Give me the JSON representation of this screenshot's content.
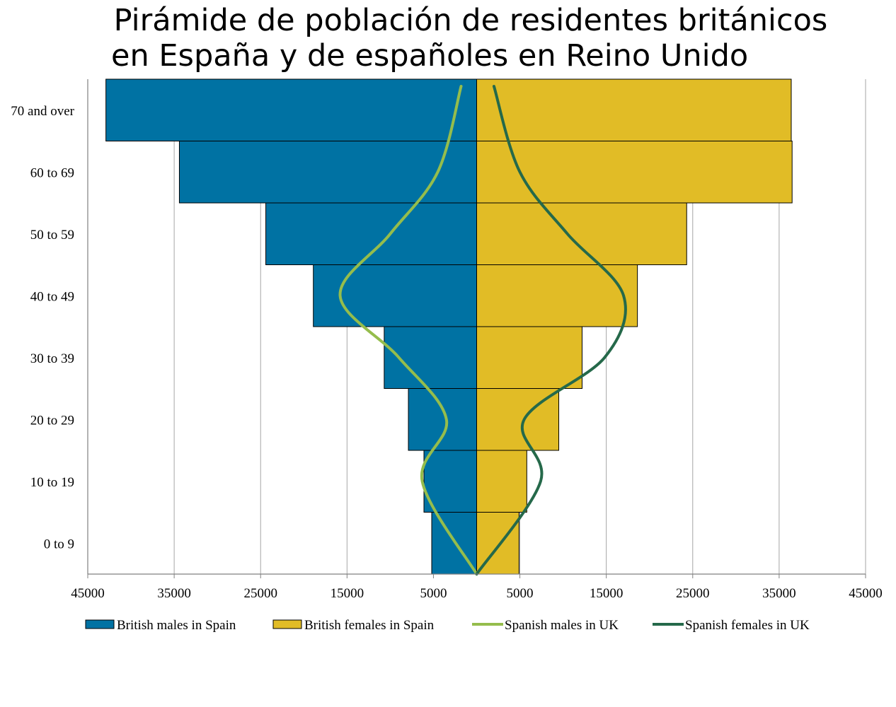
{
  "title_line1": "Pirámide de población de residentes británicos",
  "title_line2": "en España y de españoles en Reino Unido",
  "chart_data": {
    "type": "bar",
    "orientation": "horizontal-population-pyramid",
    "categories": [
      "0 to 9",
      "10 to 19",
      "20 to 29",
      "30 to 39",
      "40 to 49",
      "50 to 59",
      "60 to 69",
      "70 and over"
    ],
    "x_tick_labels": [
      "45000",
      "35000",
      "25000",
      "15000",
      "5000",
      "5000",
      "15000",
      "25000",
      "35000",
      "45000"
    ],
    "xlim": [
      -45000,
      45000
    ],
    "grid": "vertical",
    "legend_position": "bottom",
    "series": [
      {
        "name": "British males in Spain",
        "kind": "bar",
        "side": "left",
        "color": "#0072A3",
        "values": [
          5200,
          6100,
          7900,
          10700,
          18900,
          24400,
          34400,
          42900
        ]
      },
      {
        "name": "British females in Spain",
        "kind": "bar",
        "side": "right",
        "color": "#E1BC26",
        "values": [
          4900,
          5800,
          9500,
          12200,
          18600,
          24300,
          36500,
          36400
        ]
      },
      {
        "name": "Spanish males in UK",
        "kind": "line",
        "side": "left",
        "color": "#95BD4C",
        "values": [
          0,
          6300,
          3500,
          9000,
          15800,
          10000,
          4500,
          1800
        ]
      },
      {
        "name": "Spanish females in UK",
        "kind": "line",
        "side": "right",
        "color": "#25694A",
        "values": [
          0,
          7400,
          5500,
          14800,
          17000,
          10500,
          5000,
          2000
        ]
      }
    ]
  }
}
